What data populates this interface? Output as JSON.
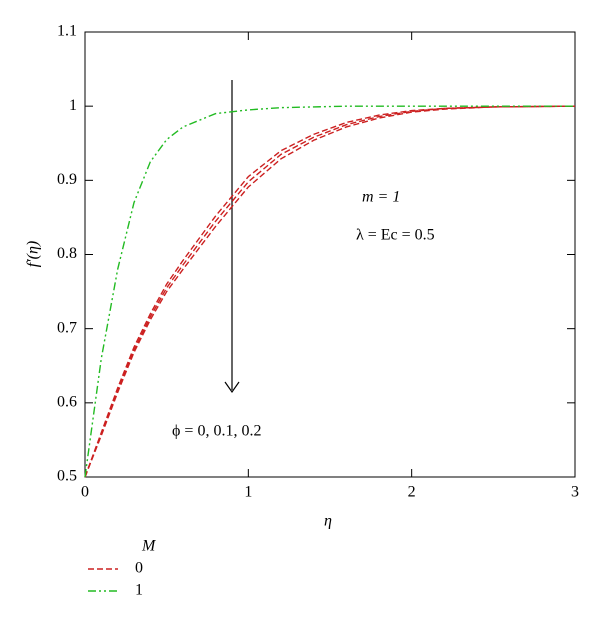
{
  "chart_data": {
    "type": "line",
    "xlabel": "η",
    "ylabel": "f′(η)",
    "annotations": [
      "m = 1",
      "λ = Ec = 0.5",
      "ϕ = 0, 0.1, 0.2"
    ],
    "legend_title": "M",
    "x": [
      0,
      0.1,
      0.2,
      0.3,
      0.4,
      0.5,
      0.6,
      0.8,
      1,
      1.2,
      1.4,
      1.6,
      1.8,
      2,
      2.2,
      2.5,
      3
    ],
    "series": [
      {
        "name": "0",
        "color": "#cc2020",
        "dash": "6,3",
        "values": [
          [
            0.5,
            0.56,
            0.62,
            0.675,
            0.72,
            0.76,
            0.792,
            0.852,
            0.905,
            0.94,
            0.962,
            0.978,
            0.988,
            0.994,
            0.997,
            0.999,
            1
          ],
          [
            0.5,
            0.558,
            0.617,
            0.671,
            0.716,
            0.755,
            0.786,
            0.845,
            0.898,
            0.935,
            0.958,
            0.975,
            0.986,
            0.993,
            0.997,
            0.999,
            1
          ],
          [
            0.5,
            0.556,
            0.614,
            0.668,
            0.712,
            0.75,
            0.78,
            0.838,
            0.891,
            0.929,
            0.954,
            0.972,
            0.984,
            0.992,
            0.996,
            0.999,
            1
          ]
        ]
      },
      {
        "name": "1",
        "color": "#22bb22",
        "dash": "8,3,2,3,2,3",
        "values": [
          [
            0.5,
            0.66,
            0.78,
            0.87,
            0.925,
            0.955,
            0.972,
            0.99,
            0.995,
            0.998,
            0.999,
            1,
            1,
            1,
            1,
            1,
            1
          ]
        ]
      }
    ],
    "xlim": [
      0,
      3
    ],
    "ylim": [
      0.5,
      1.1
    ],
    "xticks": [
      0,
      1,
      2,
      3
    ],
    "yticks": [
      0.5,
      0.6,
      0.7,
      0.8,
      0.9,
      1,
      1.1
    ]
  }
}
